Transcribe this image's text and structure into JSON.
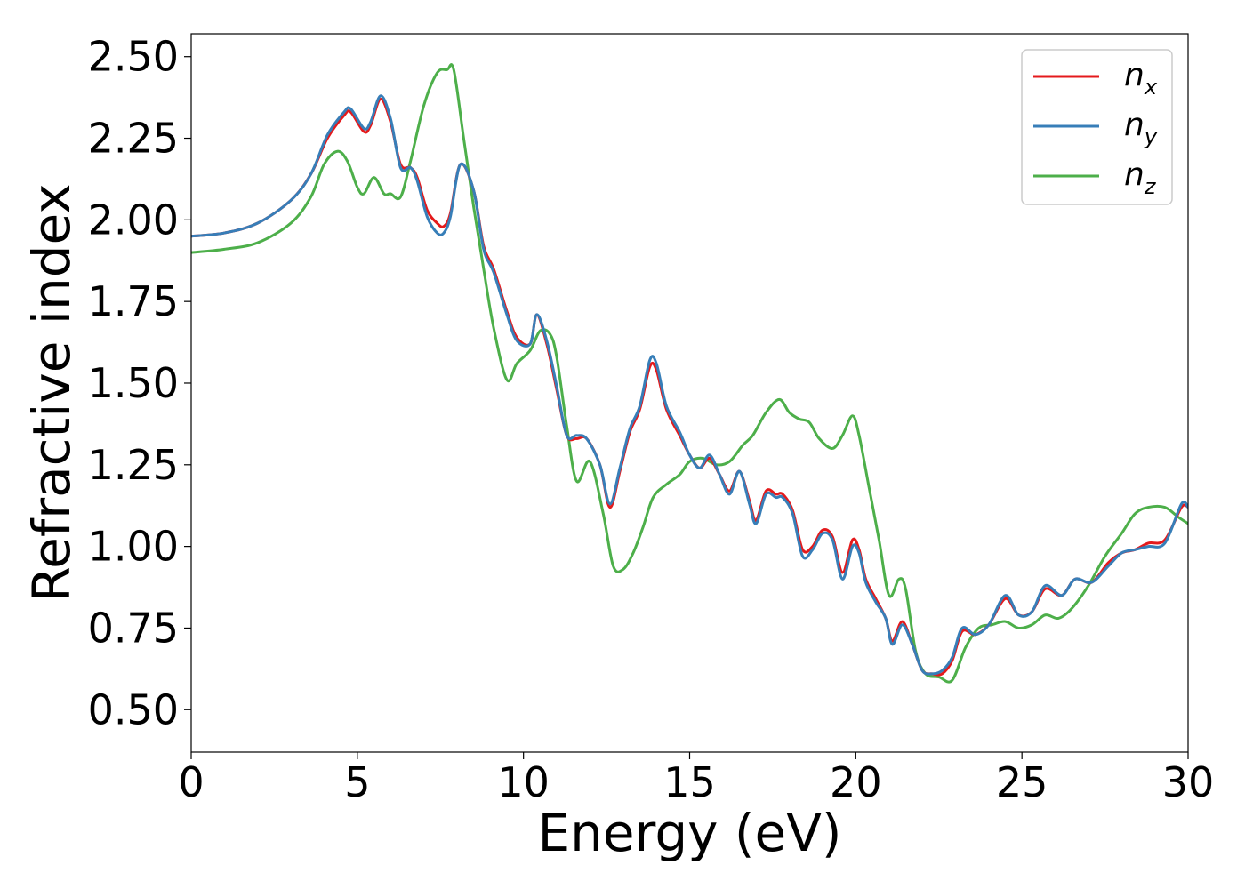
{
  "chart_data": {
    "type": "line",
    "title": "",
    "xlabel": "Energy (eV)",
    "ylabel": "Refractive index",
    "xlim": [
      0,
      30
    ],
    "ylim": [
      0.37,
      2.57
    ],
    "x_ticks": [
      0,
      5,
      10,
      15,
      20,
      25,
      30
    ],
    "x_tick_labels": [
      "0",
      "5",
      "10",
      "15",
      "20",
      "25",
      "30"
    ],
    "y_ticks": [
      0.5,
      0.75,
      1.0,
      1.25,
      1.5,
      1.75,
      2.0,
      2.25,
      2.5
    ],
    "y_tick_labels": [
      "0.50",
      "0.75",
      "1.00",
      "1.25",
      "1.50",
      "1.75",
      "2.00",
      "2.25",
      "2.50"
    ],
    "grid": false,
    "legend_position": "top-right",
    "series": [
      {
        "name": "n_x",
        "label_base": "n",
        "label_sub": "x",
        "color": "#e41a1c",
        "points": [
          [
            0,
            1.95
          ],
          [
            1,
            1.96
          ],
          [
            2,
            1.99
          ],
          [
            3,
            2.06
          ],
          [
            3.6,
            2.14
          ],
          [
            4.1,
            2.25
          ],
          [
            4.6,
            2.32
          ],
          [
            4.8,
            2.33
          ],
          [
            5.2,
            2.27
          ],
          [
            5.4,
            2.29
          ],
          [
            5.7,
            2.37
          ],
          [
            6.0,
            2.3
          ],
          [
            6.3,
            2.17
          ],
          [
            6.6,
            2.16
          ],
          [
            6.8,
            2.13
          ],
          [
            7.1,
            2.03
          ],
          [
            7.4,
            1.99
          ],
          [
            7.6,
            1.98
          ],
          [
            7.8,
            2.02
          ],
          [
            8.1,
            2.17
          ],
          [
            8.5,
            2.09
          ],
          [
            8.8,
            1.92
          ],
          [
            9.1,
            1.85
          ],
          [
            9.5,
            1.72
          ],
          [
            9.8,
            1.64
          ],
          [
            10.2,
            1.62
          ],
          [
            10.4,
            1.71
          ],
          [
            10.7,
            1.62
          ],
          [
            11.0,
            1.48
          ],
          [
            11.3,
            1.34
          ],
          [
            11.6,
            1.33
          ],
          [
            11.9,
            1.33
          ],
          [
            12.3,
            1.25
          ],
          [
            12.6,
            1.12
          ],
          [
            12.9,
            1.23
          ],
          [
            13.2,
            1.35
          ],
          [
            13.5,
            1.42
          ],
          [
            13.8,
            1.55
          ],
          [
            14.0,
            1.54
          ],
          [
            14.3,
            1.42
          ],
          [
            14.7,
            1.34
          ],
          [
            15.0,
            1.28
          ],
          [
            15.3,
            1.24
          ],
          [
            15.6,
            1.27
          ],
          [
            15.9,
            1.22
          ],
          [
            16.2,
            1.17
          ],
          [
            16.5,
            1.23
          ],
          [
            16.8,
            1.14
          ],
          [
            17.0,
            1.08
          ],
          [
            17.3,
            1.17
          ],
          [
            17.6,
            1.16
          ],
          [
            17.8,
            1.16
          ],
          [
            18.1,
            1.11
          ],
          [
            18.4,
            0.99
          ],
          [
            18.7,
            1.0
          ],
          [
            19.0,
            1.05
          ],
          [
            19.3,
            1.03
          ],
          [
            19.6,
            0.92
          ],
          [
            19.9,
            1.02
          ],
          [
            20.1,
            0.99
          ],
          [
            20.3,
            0.9
          ],
          [
            20.6,
            0.84
          ],
          [
            20.9,
            0.78
          ],
          [
            21.1,
            0.71
          ],
          [
            21.4,
            0.77
          ],
          [
            21.7,
            0.7
          ],
          [
            22.0,
            0.62
          ],
          [
            22.3,
            0.61
          ],
          [
            22.6,
            0.61
          ],
          [
            22.9,
            0.65
          ],
          [
            23.2,
            0.74
          ],
          [
            23.6,
            0.73
          ],
          [
            24.0,
            0.76
          ],
          [
            24.5,
            0.84
          ],
          [
            24.9,
            0.79
          ],
          [
            25.3,
            0.8
          ],
          [
            25.7,
            0.87
          ],
          [
            26.2,
            0.85
          ],
          [
            26.6,
            0.9
          ],
          [
            27.1,
            0.89
          ],
          [
            27.6,
            0.95
          ],
          [
            28.0,
            0.98
          ],
          [
            28.4,
            0.99
          ],
          [
            28.8,
            1.01
          ],
          [
            29.3,
            1.02
          ],
          [
            29.8,
            1.12
          ],
          [
            30,
            1.12
          ]
        ]
      },
      {
        "name": "n_y",
        "label_base": "n",
        "label_sub": "y",
        "color": "#377eb8",
        "points": [
          [
            0,
            1.95
          ],
          [
            1,
            1.96
          ],
          [
            2,
            1.99
          ],
          [
            3,
            2.06
          ],
          [
            3.6,
            2.14
          ],
          [
            4.1,
            2.26
          ],
          [
            4.6,
            2.33
          ],
          [
            4.8,
            2.34
          ],
          [
            5.2,
            2.28
          ],
          [
            5.4,
            2.3
          ],
          [
            5.7,
            2.38
          ],
          [
            6.0,
            2.31
          ],
          [
            6.3,
            2.16
          ],
          [
            6.6,
            2.16
          ],
          [
            6.8,
            2.12
          ],
          [
            7.1,
            2.01
          ],
          [
            7.4,
            1.96
          ],
          [
            7.6,
            1.96
          ],
          [
            7.8,
            2.01
          ],
          [
            8.1,
            2.17
          ],
          [
            8.5,
            2.09
          ],
          [
            8.8,
            1.91
          ],
          [
            9.1,
            1.84
          ],
          [
            9.5,
            1.71
          ],
          [
            9.8,
            1.63
          ],
          [
            10.2,
            1.62
          ],
          [
            10.4,
            1.71
          ],
          [
            10.7,
            1.63
          ],
          [
            11.0,
            1.49
          ],
          [
            11.3,
            1.34
          ],
          [
            11.6,
            1.34
          ],
          [
            11.9,
            1.33
          ],
          [
            12.3,
            1.25
          ],
          [
            12.6,
            1.13
          ],
          [
            12.9,
            1.24
          ],
          [
            13.2,
            1.36
          ],
          [
            13.5,
            1.43
          ],
          [
            13.8,
            1.57
          ],
          [
            14.0,
            1.56
          ],
          [
            14.3,
            1.43
          ],
          [
            14.7,
            1.35
          ],
          [
            15.0,
            1.28
          ],
          [
            15.3,
            1.24
          ],
          [
            15.6,
            1.28
          ],
          [
            15.9,
            1.22
          ],
          [
            16.2,
            1.16
          ],
          [
            16.5,
            1.23
          ],
          [
            16.8,
            1.13
          ],
          [
            17.0,
            1.07
          ],
          [
            17.3,
            1.16
          ],
          [
            17.6,
            1.15
          ],
          [
            17.8,
            1.15
          ],
          [
            18.1,
            1.1
          ],
          [
            18.4,
            0.97
          ],
          [
            18.7,
            0.99
          ],
          [
            19.0,
            1.04
          ],
          [
            19.3,
            1.02
          ],
          [
            19.6,
            0.9
          ],
          [
            19.9,
            1.0
          ],
          [
            20.1,
            0.98
          ],
          [
            20.3,
            0.89
          ],
          [
            20.6,
            0.83
          ],
          [
            20.9,
            0.78
          ],
          [
            21.1,
            0.7
          ],
          [
            21.4,
            0.76
          ],
          [
            21.7,
            0.7
          ],
          [
            22.0,
            0.62
          ],
          [
            22.3,
            0.61
          ],
          [
            22.6,
            0.62
          ],
          [
            22.9,
            0.66
          ],
          [
            23.2,
            0.75
          ],
          [
            23.6,
            0.73
          ],
          [
            24.0,
            0.76
          ],
          [
            24.5,
            0.85
          ],
          [
            24.9,
            0.79
          ],
          [
            25.3,
            0.8
          ],
          [
            25.7,
            0.88
          ],
          [
            26.2,
            0.85
          ],
          [
            26.6,
            0.9
          ],
          [
            27.1,
            0.89
          ],
          [
            27.6,
            0.94
          ],
          [
            28.0,
            0.98
          ],
          [
            28.4,
            0.99
          ],
          [
            28.8,
            1.0
          ],
          [
            29.3,
            1.01
          ],
          [
            29.8,
            1.13
          ],
          [
            30,
            1.12
          ]
        ]
      },
      {
        "name": "n_z",
        "label_base": "n",
        "label_sub": "z",
        "color": "#4daf4a",
        "points": [
          [
            0,
            1.9
          ],
          [
            1,
            1.91
          ],
          [
            2,
            1.93
          ],
          [
            3,
            1.99
          ],
          [
            3.6,
            2.07
          ],
          [
            4.0,
            2.17
          ],
          [
            4.4,
            2.21
          ],
          [
            4.7,
            2.18
          ],
          [
            5.0,
            2.1
          ],
          [
            5.2,
            2.08
          ],
          [
            5.5,
            2.13
          ],
          [
            5.8,
            2.08
          ],
          [
            6.0,
            2.08
          ],
          [
            6.3,
            2.07
          ],
          [
            6.6,
            2.18
          ],
          [
            7.0,
            2.35
          ],
          [
            7.4,
            2.45
          ],
          [
            7.7,
            2.46
          ],
          [
            7.9,
            2.46
          ],
          [
            8.2,
            2.25
          ],
          [
            8.5,
            2.04
          ],
          [
            8.8,
            1.85
          ],
          [
            9.1,
            1.67
          ],
          [
            9.5,
            1.51
          ],
          [
            9.8,
            1.56
          ],
          [
            10.2,
            1.6
          ],
          [
            10.5,
            1.66
          ],
          [
            10.8,
            1.65
          ],
          [
            11.0,
            1.58
          ],
          [
            11.3,
            1.37
          ],
          [
            11.6,
            1.2
          ],
          [
            12.0,
            1.26
          ],
          [
            12.4,
            1.1
          ],
          [
            12.7,
            0.94
          ],
          [
            13.0,
            0.93
          ],
          [
            13.3,
            0.98
          ],
          [
            13.6,
            1.06
          ],
          [
            13.9,
            1.15
          ],
          [
            14.3,
            1.19
          ],
          [
            14.7,
            1.22
          ],
          [
            15.0,
            1.26
          ],
          [
            15.4,
            1.27
          ],
          [
            15.8,
            1.25
          ],
          [
            16.2,
            1.26
          ],
          [
            16.6,
            1.31
          ],
          [
            16.9,
            1.34
          ],
          [
            17.3,
            1.41
          ],
          [
            17.7,
            1.45
          ],
          [
            18.0,
            1.41
          ],
          [
            18.3,
            1.39
          ],
          [
            18.6,
            1.38
          ],
          [
            18.9,
            1.33
          ],
          [
            19.3,
            1.3
          ],
          [
            19.6,
            1.34
          ],
          [
            19.9,
            1.4
          ],
          [
            20.1,
            1.34
          ],
          [
            20.4,
            1.18
          ],
          [
            20.7,
            1.02
          ],
          [
            21.0,
            0.85
          ],
          [
            21.3,
            0.9
          ],
          [
            21.5,
            0.87
          ],
          [
            21.8,
            0.68
          ],
          [
            22.1,
            0.61
          ],
          [
            22.5,
            0.6
          ],
          [
            22.9,
            0.59
          ],
          [
            23.3,
            0.69
          ],
          [
            23.7,
            0.75
          ],
          [
            24.1,
            0.76
          ],
          [
            24.5,
            0.77
          ],
          [
            24.9,
            0.75
          ],
          [
            25.3,
            0.76
          ],
          [
            25.7,
            0.79
          ],
          [
            26.1,
            0.78
          ],
          [
            26.5,
            0.81
          ],
          [
            27.0,
            0.88
          ],
          [
            27.5,
            0.97
          ],
          [
            28.0,
            1.04
          ],
          [
            28.4,
            1.1
          ],
          [
            28.8,
            1.12
          ],
          [
            29.3,
            1.12
          ],
          [
            29.7,
            1.09
          ],
          [
            30,
            1.07
          ]
        ]
      }
    ]
  }
}
